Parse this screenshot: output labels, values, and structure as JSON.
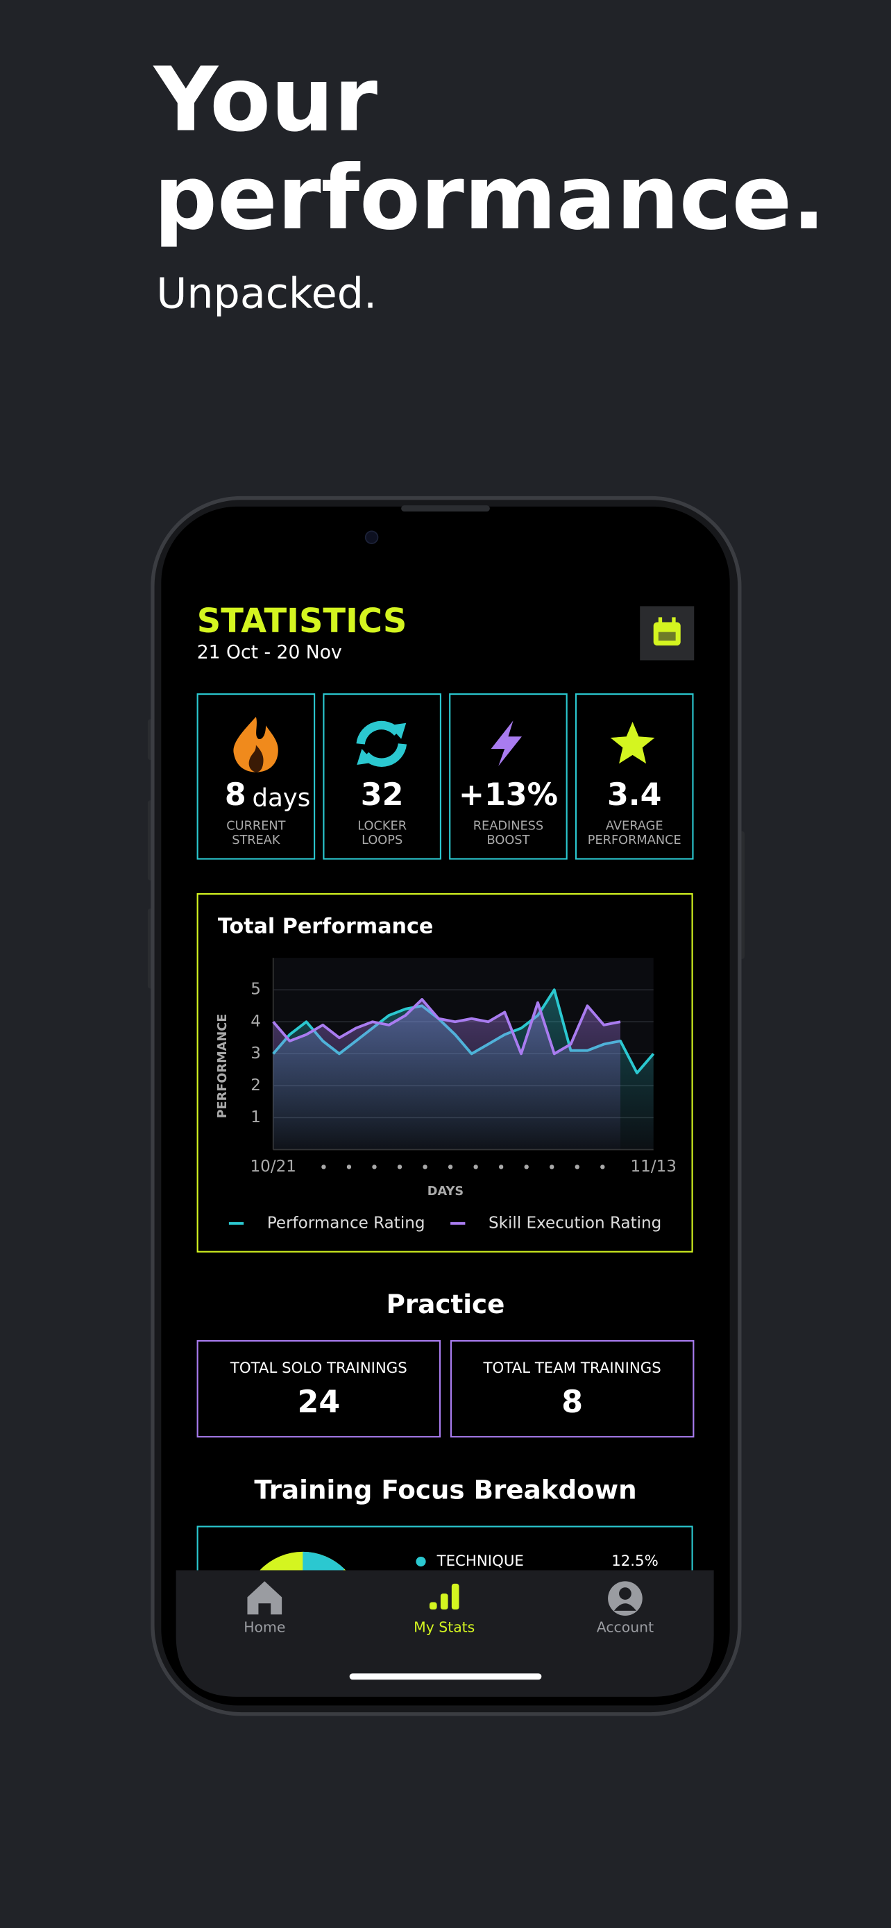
{
  "hero": {
    "title_lines": [
      "Your",
      "performance."
    ],
    "subtitle": "Unpacked."
  },
  "header": {
    "title": "STATISTICS",
    "date_range": "21 Oct - 20 Nov"
  },
  "stat_cards": [
    {
      "value": "8",
      "unit": "days",
      "label": [
        "CURRENT",
        "STREAK"
      ]
    },
    {
      "value": "32",
      "label": [
        "LOCKER",
        "LOOPS"
      ]
    },
    {
      "value": "+13%",
      "label": [
        "READINESS",
        "BOOST"
      ]
    },
    {
      "value": "3.4",
      "label": [
        "AVERAGE",
        "PERFORMANCE"
      ]
    }
  ],
  "performance_chart": {
    "title": "Total Performance",
    "y_label": "PERFORMANCE",
    "x_label": "DAYS",
    "x_start": "10/21",
    "x_end": "11/13",
    "ylim": [
      0,
      6
    ],
    "yticks": [
      1,
      2,
      3,
      4,
      5
    ],
    "series": [
      {
        "name": "Performance Rating",
        "color": "#2bc8d0",
        "values": [
          3,
          3.6,
          4,
          3.4,
          3,
          3.4,
          3.8,
          4.2,
          4.4,
          4.5,
          4.1,
          3.6,
          3,
          3.3,
          3.6,
          3.8,
          4.2,
          5,
          3.1,
          3.1,
          3.3,
          3.4,
          2.4,
          3
        ]
      },
      {
        "name": "Skill Execution Rating",
        "color": "#a97cf0",
        "values": [
          4,
          3.4,
          3.6,
          3.9,
          3.5,
          3.8,
          4,
          3.9,
          4.2,
          4.7,
          4.1,
          4,
          4.1,
          4,
          4.3,
          3,
          4.6,
          3,
          3.3,
          4.5,
          3.9,
          4,
          null,
          null
        ]
      }
    ]
  },
  "practice": {
    "title": "Practice",
    "cards": [
      {
        "label": "TOTAL SOLO TRAININGS",
        "value": "24"
      },
      {
        "label": "TOTAL TEAM TRAININGS",
        "value": "8"
      }
    ]
  },
  "breakdown": {
    "title": "Training Focus Breakdown",
    "items": [
      {
        "label": "TECHNIQUE",
        "value": 12.5,
        "value_label": "12.5%",
        "color": "#2bc8d0"
      }
    ]
  },
  "nav": {
    "items": [
      "Home",
      "My Stats",
      "Account"
    ],
    "active": 1
  }
}
